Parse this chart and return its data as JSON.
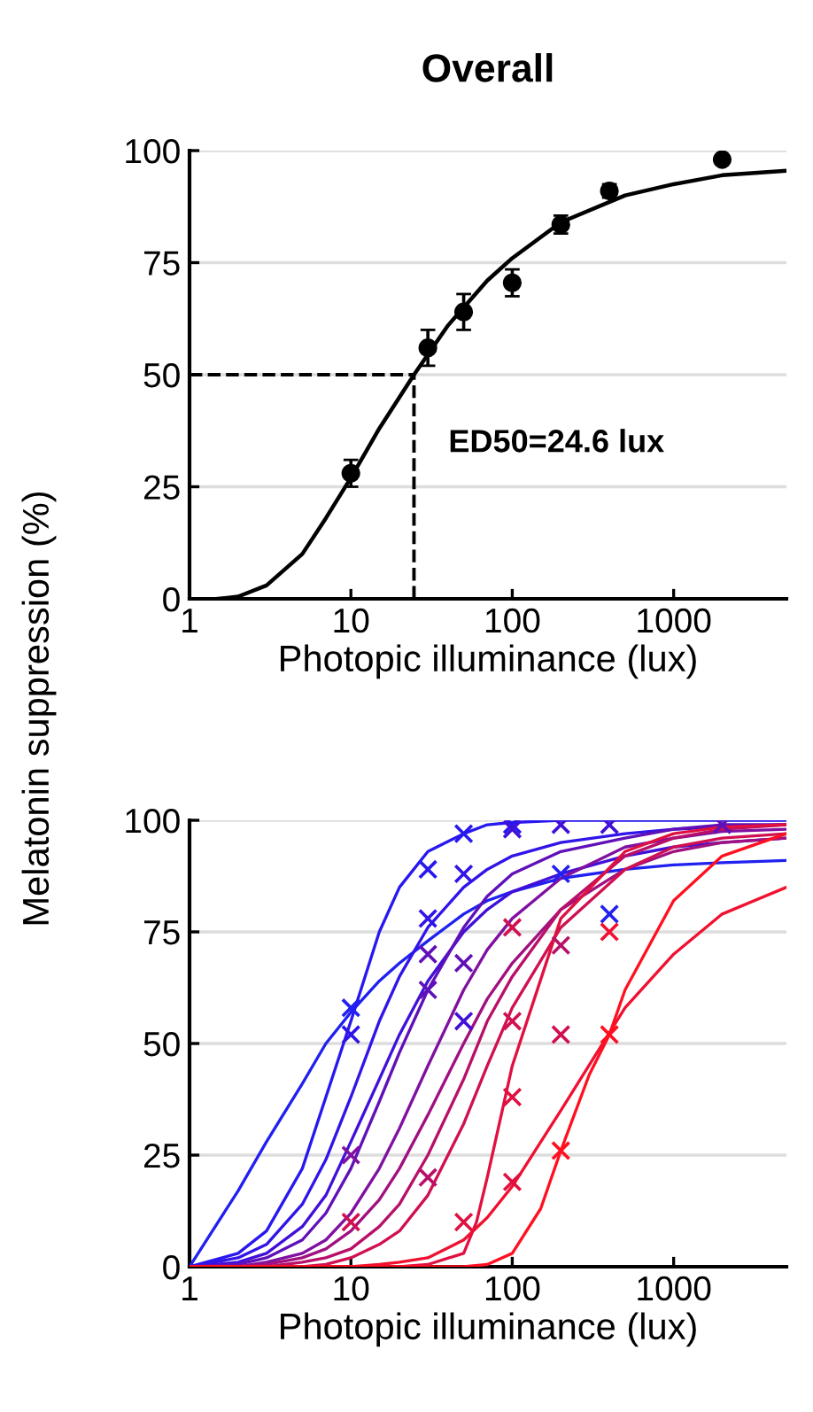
{
  "chart_data": [
    {
      "type": "line",
      "title": "Overall",
      "xlabel": "Photopic illuminance (lux)",
      "ylabel": "Melatonin suppression (%)",
      "log": "x",
      "xlim": [
        1,
        5000
      ],
      "ylim": [
        0,
        100
      ],
      "xticks": [
        1,
        10,
        100,
        1000
      ],
      "yticks": [
        0,
        25,
        50,
        75,
        100
      ],
      "grid": "y",
      "legend": false,
      "ref_lines": [
        {
          "axis": "y",
          "value": 50,
          "line_style": "dashed",
          "color": "#000000"
        },
        {
          "axis": "x",
          "value": 24.6,
          "line_style": "dashed",
          "color": "#000000"
        }
      ],
      "annotations": [
        {
          "text": "ED50=24.6 lux",
          "x": 24.6,
          "y": 50
        }
      ],
      "series": [
        {
          "type": "line",
          "color": "#000000",
          "line_style": "solid",
          "marker": "none",
          "x": [
            1.5,
            2,
            3,
            5,
            7,
            10,
            15,
            24.6,
            40,
            70,
            100,
            200,
            500,
            1000,
            2000,
            5000
          ],
          "values": [
            0,
            0.5,
            3,
            10,
            18,
            27,
            38,
            50,
            61,
            71,
            76,
            84,
            90,
            92.5,
            94.5,
            95.5
          ]
        },
        {
          "type": "scatter",
          "color": "#000000",
          "marker": "circle",
          "x": [
            10,
            30,
            50,
            100,
            200,
            400,
            2000
          ],
          "values": [
            28,
            56,
            64,
            70.5,
            83.5,
            91,
            98
          ],
          "errors": [
            3,
            4,
            4,
            3,
            2,
            1.5,
            null
          ]
        }
      ]
    },
    {
      "type": "line",
      "xlabel": "Photopic illuminance (lux)",
      "log": "x",
      "xlim": [
        1,
        5000
      ],
      "ylim": [
        0,
        100
      ],
      "xticks": [
        1,
        10,
        100,
        1000
      ],
      "yticks": [
        0,
        25,
        50,
        75,
        100
      ],
      "grid": "y",
      "legend": false,
      "series": [
        {
          "type": "line",
          "color": "#2020f0",
          "marker": "none",
          "x": [
            1,
            2,
            3,
            5,
            7,
            10,
            15,
            20,
            30,
            50,
            70,
            100,
            200,
            500,
            1000,
            2000,
            5000
          ],
          "values": [
            0,
            17,
            28,
            41,
            50,
            57,
            64,
            68,
            73,
            79,
            82,
            84,
            87,
            89,
            90,
            90.5,
            91
          ]
        },
        {
          "type": "line",
          "color": "#2818f0",
          "marker": "none",
          "x": [
            1,
            2,
            3,
            5,
            7,
            10,
            15,
            20,
            30,
            50,
            70,
            100,
            200,
            500,
            1000,
            2000,
            5000
          ],
          "values": [
            0,
            3,
            8,
            22,
            38,
            55,
            75,
            85,
            93,
            97,
            99,
            99.5,
            100,
            100,
            100,
            100,
            100
          ]
        },
        {
          "type": "line",
          "color": "#3014e8",
          "marker": "none",
          "x": [
            1,
            2,
            3,
            5,
            7,
            10,
            15,
            20,
            30,
            50,
            70,
            100,
            200,
            500,
            1000,
            2000,
            5000
          ],
          "values": [
            0,
            2,
            5,
            14,
            24,
            38,
            55,
            65,
            76,
            85,
            89,
            92,
            95,
            97,
            98,
            98.5,
            99
          ]
        },
        {
          "type": "line",
          "color": "#4010d8",
          "marker": "none",
          "x": [
            1,
            2,
            3,
            5,
            7,
            10,
            15,
            20,
            30,
            50,
            70,
            100,
            200,
            500,
            1000,
            2000,
            5000
          ],
          "values": [
            0,
            1,
            3,
            9,
            16,
            28,
            42,
            52,
            64,
            75,
            80,
            84,
            88,
            92,
            94,
            95,
            96
          ]
        },
        {
          "type": "line",
          "color": "#6010b8",
          "marker": "none",
          "x": [
            1,
            2,
            3,
            5,
            7,
            10,
            15,
            20,
            30,
            50,
            70,
            100,
            200,
            500,
            1000,
            2000,
            5000
          ],
          "values": [
            0,
            0.5,
            2,
            6,
            12,
            22,
            37,
            48,
            62,
            76,
            83,
            88,
            93,
            96,
            98,
            99,
            99
          ]
        },
        {
          "type": "line",
          "color": "#8010a0",
          "marker": "none",
          "x": [
            1,
            2,
            3,
            5,
            7,
            10,
            15,
            20,
            30,
            50,
            70,
            100,
            200,
            500,
            1000,
            2000,
            5000
          ],
          "values": [
            0,
            0,
            1,
            3,
            6,
            12,
            22,
            31,
            45,
            62,
            71,
            78,
            87,
            94,
            96,
            97.5,
            98
          ]
        },
        {
          "type": "line",
          "color": "#a01080",
          "marker": "none",
          "x": [
            1,
            2,
            3,
            5,
            7,
            10,
            15,
            20,
            30,
            50,
            70,
            100,
            200,
            500,
            1000,
            2000,
            5000
          ],
          "values": [
            0,
            0,
            0.5,
            2,
            4,
            8,
            15,
            22,
            34,
            50,
            60,
            68,
            80,
            89,
            93,
            95,
            96
          ]
        },
        {
          "type": "line",
          "color": "#b81068",
          "marker": "none",
          "x": [
            1,
            2,
            3,
            5,
            7,
            10,
            15,
            20,
            30,
            50,
            70,
            100,
            200,
            500,
            1000,
            2000,
            5000
          ],
          "values": [
            0,
            0,
            0,
            1,
            2,
            4,
            9,
            14,
            25,
            42,
            55,
            65,
            80,
            92,
            96,
            98,
            99
          ]
        },
        {
          "type": "line",
          "color": "#d01050",
          "marker": "none",
          "x": [
            1,
            2,
            3,
            5,
            7,
            10,
            15,
            20,
            30,
            50,
            70,
            100,
            200,
            500,
            1000,
            2000,
            5000
          ],
          "values": [
            0,
            0,
            0,
            0,
            0.5,
            2,
            5,
            8,
            16,
            32,
            45,
            58,
            76,
            89,
            94,
            96,
            97
          ]
        },
        {
          "type": "line",
          "color": "#e01040",
          "marker": "none",
          "x": [
            1,
            10,
            20,
            30,
            50,
            60,
            70,
            100,
            200,
            500,
            1000,
            2000,
            5000
          ],
          "values": [
            0,
            0,
            0,
            0.5,
            3,
            10,
            20,
            45,
            78,
            93,
            97,
            98.5,
            99
          ]
        },
        {
          "type": "line",
          "color": "#f01030",
          "marker": "none",
          "x": [
            1,
            10,
            15,
            20,
            30,
            50,
            70,
            100,
            200,
            500,
            1000,
            2000,
            5000
          ],
          "values": [
            0,
            0,
            0.5,
            1,
            2,
            6,
            11,
            18,
            35,
            58,
            70,
            79,
            85
          ]
        },
        {
          "type": "line",
          "color": "#ff1020",
          "marker": "none",
          "x": [
            1,
            50,
            70,
            100,
            150,
            200,
            300,
            400,
            500,
            1000,
            2000,
            5000
          ],
          "values": [
            0,
            0,
            0.5,
            3,
            13,
            26,
            43,
            52,
            62,
            82,
            92,
            97
          ]
        },
        {
          "type": "scatter",
          "marker": "cross",
          "x": [
            10,
            30,
            50,
            100,
            200,
            400,
            2000,
            10,
            30,
            50,
            100,
            200,
            400,
            10,
            30,
            50,
            100,
            30,
            10,
            50,
            100,
            100,
            100,
            200,
            200,
            400,
            400,
            200,
            30,
            50
          ],
          "values": [
            58,
            89,
            97,
            99,
            99,
            99,
            99,
            52,
            78,
            88,
            98,
            88,
            79,
            25,
            62,
            55,
            76,
            20,
            10,
            10,
            19,
            38,
            55,
            52,
            26,
            52,
            75,
            72,
            70,
            68
          ],
          "colors": [
            "#2020f0",
            "#2818f0",
            "#2818f0",
            "#2818f0",
            "#4010d8",
            "#4010d8",
            "#6010b8",
            "#3014e8",
            "#3014e8",
            "#3014e8",
            "#4010d8",
            "#2020f0",
            "#2020f0",
            "#8010a0",
            "#6010b8",
            "#4010d8",
            "#d01050",
            "#b81068",
            "#d01050",
            "#e01040",
            "#e01040",
            "#e01040",
            "#d01050",
            "#d01050",
            "#ff1020",
            "#ff1020",
            "#f01030",
            "#b81068",
            "#6010b8",
            "#6010b8"
          ]
        }
      ]
    }
  ]
}
